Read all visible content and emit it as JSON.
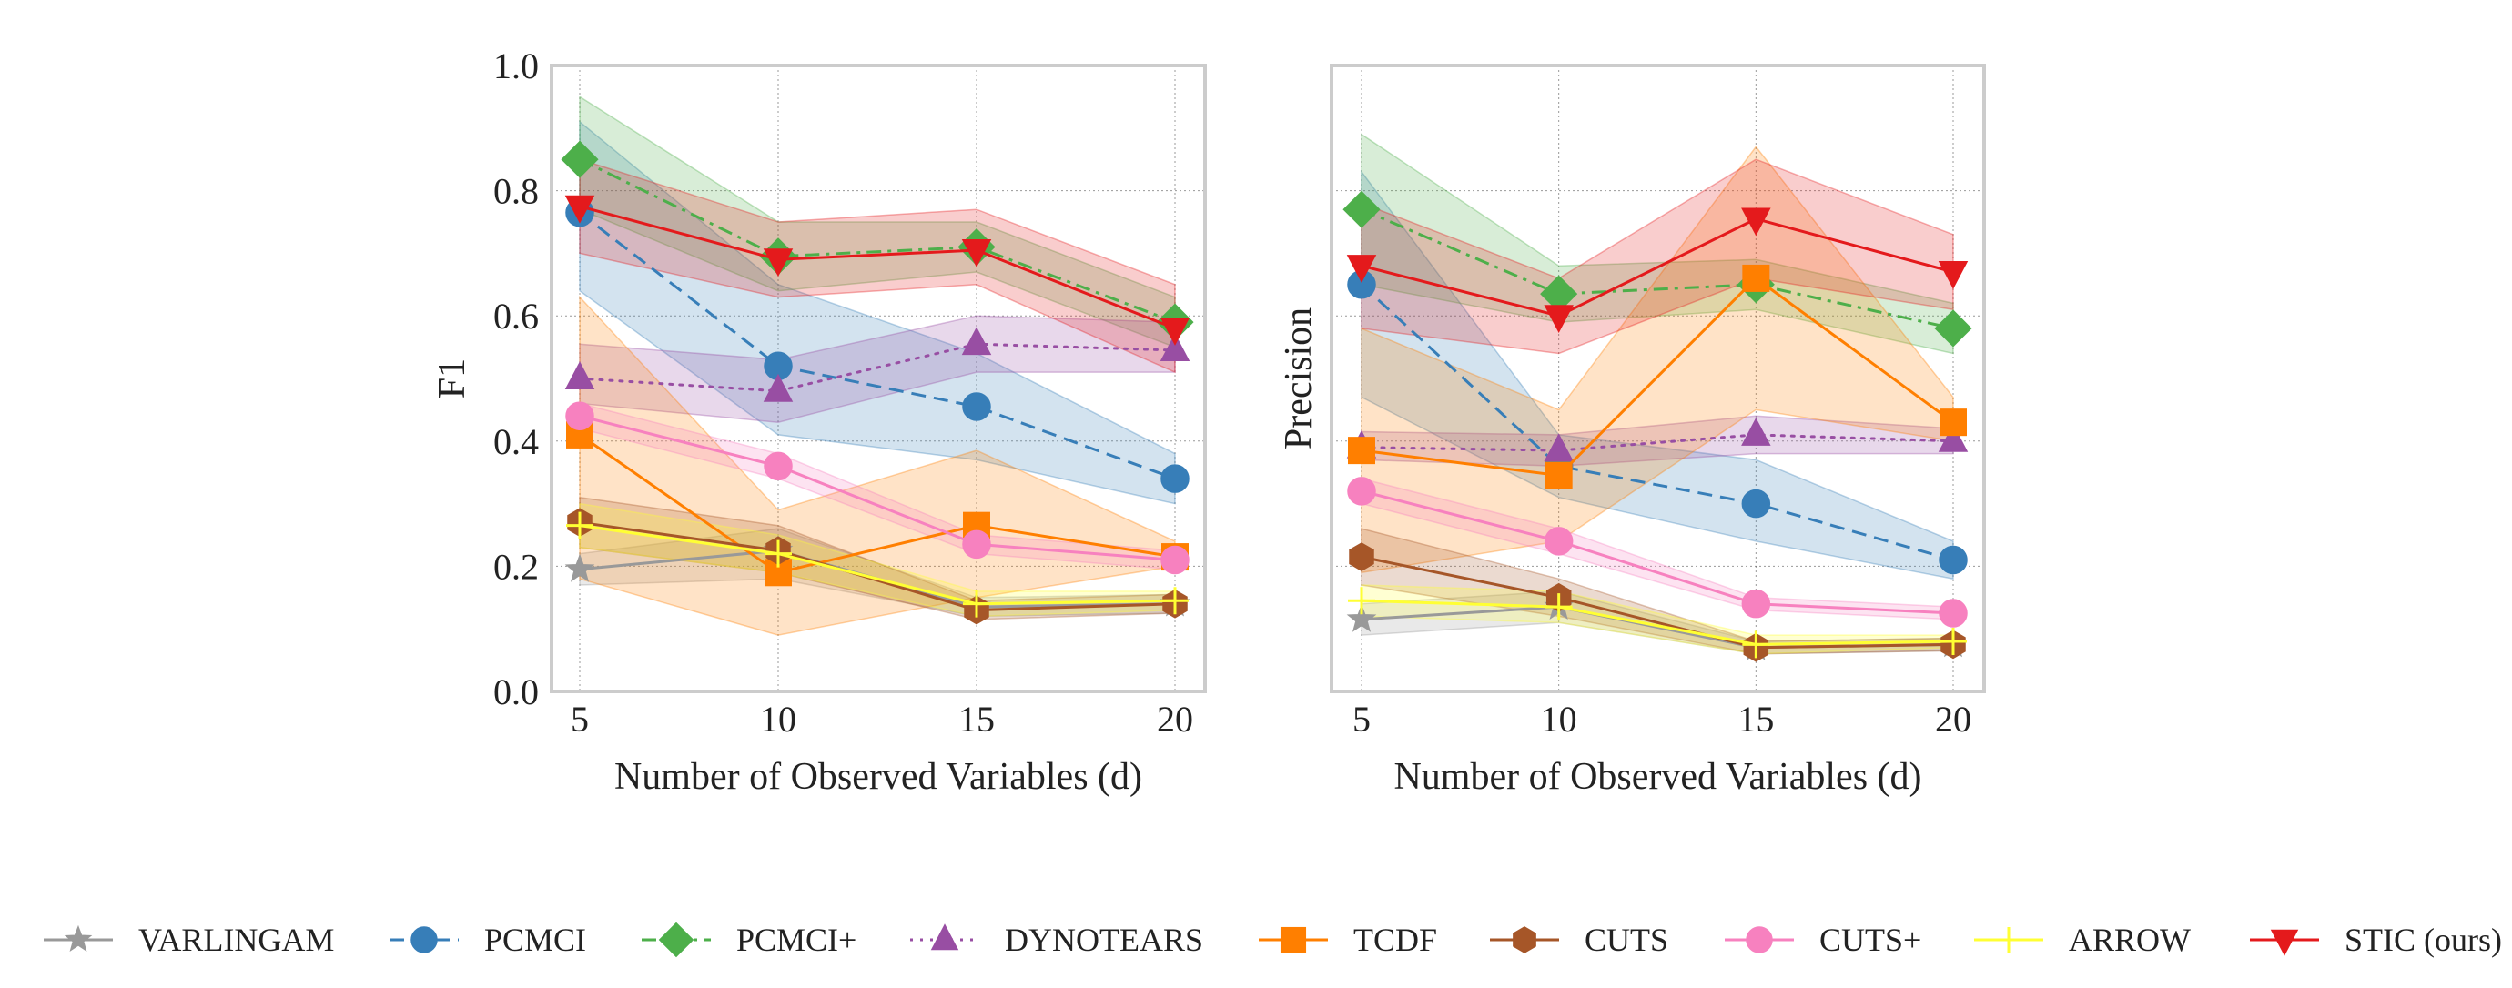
{
  "chart_data": [
    {
      "type": "line",
      "title": "",
      "xlabel": "Number of Observed Variables (d)",
      "ylabel": "F1",
      "ylim": [
        0,
        1
      ],
      "yticks": [
        "0.0",
        "0.2",
        "0.4",
        "0.6",
        "0.8",
        "1.0"
      ],
      "x": [
        5,
        10,
        15,
        20
      ],
      "xticks": [
        "5",
        "10",
        "15",
        "20"
      ],
      "grid": true,
      "series": [
        {
          "name": "VARLINGAM",
          "values": [
            0.195,
            0.225,
            0.135,
            0.14
          ],
          "lower": [
            0.17,
            0.18,
            0.12,
            0.125
          ],
          "upper": [
            0.22,
            0.26,
            0.15,
            0.155
          ]
        },
        {
          "name": "PCMCI",
          "values": [
            0.765,
            0.52,
            0.455,
            0.34
          ],
          "lower": [
            0.64,
            0.41,
            0.37,
            0.3
          ],
          "upper": [
            0.91,
            0.65,
            0.54,
            0.38
          ]
        },
        {
          "name": "PCMCI+",
          "values": [
            0.85,
            0.695,
            0.71,
            0.59
          ],
          "lower": [
            0.77,
            0.64,
            0.67,
            0.55
          ],
          "upper": [
            0.95,
            0.75,
            0.75,
            0.63
          ]
        },
        {
          "name": "DYNOTEARS",
          "values": [
            0.5,
            0.48,
            0.555,
            0.545
          ],
          "lower": [
            0.46,
            0.43,
            0.51,
            0.51
          ],
          "upper": [
            0.555,
            0.53,
            0.6,
            0.59
          ]
        },
        {
          "name": "TCDF",
          "values": [
            0.41,
            0.19,
            0.265,
            0.215
          ],
          "lower": [
            0.18,
            0.09,
            0.15,
            0.2
          ],
          "upper": [
            0.63,
            0.29,
            0.385,
            0.24
          ]
        },
        {
          "name": "CUTS",
          "values": [
            0.27,
            0.225,
            0.13,
            0.14
          ],
          "lower": [
            0.23,
            0.19,
            0.115,
            0.125
          ],
          "upper": [
            0.31,
            0.265,
            0.145,
            0.155
          ]
        },
        {
          "name": "CUTS+",
          "values": [
            0.44,
            0.36,
            0.235,
            0.21
          ],
          "lower": [
            0.42,
            0.34,
            0.22,
            0.195
          ],
          "upper": [
            0.46,
            0.38,
            0.25,
            0.225
          ]
        },
        {
          "name": "ARROW",
          "values": [
            0.265,
            0.22,
            0.14,
            0.145
          ],
          "lower": [
            0.23,
            0.19,
            0.12,
            0.13
          ],
          "upper": [
            0.3,
            0.25,
            0.16,
            0.16
          ]
        },
        {
          "name": "STIC (ours)",
          "values": [
            0.775,
            0.69,
            0.705,
            0.58
          ],
          "lower": [
            0.7,
            0.63,
            0.65,
            0.51
          ],
          "upper": [
            0.85,
            0.75,
            0.77,
            0.65
          ]
        }
      ]
    },
    {
      "type": "line",
      "title": "",
      "xlabel": "Number of Observed Variables (d)",
      "ylabel": "Precision",
      "ylim": [
        0,
        1
      ],
      "yticks": [],
      "x": [
        5,
        10,
        15,
        20
      ],
      "xticks": [
        "5",
        "10",
        "15",
        "20"
      ],
      "grid": true,
      "series": [
        {
          "name": "VARLINGAM",
          "values": [
            0.115,
            0.135,
            0.07,
            0.075
          ],
          "lower": [
            0.09,
            0.11,
            0.06,
            0.065
          ],
          "upper": [
            0.14,
            0.16,
            0.08,
            0.085
          ]
        },
        {
          "name": "PCMCI",
          "values": [
            0.65,
            0.36,
            0.3,
            0.21
          ],
          "lower": [
            0.47,
            0.31,
            0.24,
            0.18
          ],
          "upper": [
            0.83,
            0.41,
            0.37,
            0.24
          ]
        },
        {
          "name": "PCMCI+",
          "values": [
            0.77,
            0.635,
            0.65,
            0.58
          ],
          "lower": [
            0.65,
            0.59,
            0.61,
            0.54
          ],
          "upper": [
            0.89,
            0.68,
            0.69,
            0.62
          ]
        },
        {
          "name": "DYNOTEARS",
          "values": [
            0.39,
            0.385,
            0.41,
            0.4
          ],
          "lower": [
            0.37,
            0.36,
            0.38,
            0.38
          ],
          "upper": [
            0.415,
            0.41,
            0.44,
            0.42
          ]
        },
        {
          "name": "TCDF",
          "values": [
            0.385,
            0.345,
            0.66,
            0.43
          ],
          "lower": [
            0.19,
            0.24,
            0.45,
            0.4
          ],
          "upper": [
            0.58,
            0.45,
            0.87,
            0.47
          ]
        },
        {
          "name": "CUTS",
          "values": [
            0.215,
            0.15,
            0.07,
            0.075
          ],
          "lower": [
            0.17,
            0.12,
            0.06,
            0.065
          ],
          "upper": [
            0.26,
            0.18,
            0.08,
            0.085
          ]
        },
        {
          "name": "CUTS+",
          "values": [
            0.32,
            0.24,
            0.14,
            0.125
          ],
          "lower": [
            0.3,
            0.22,
            0.13,
            0.115
          ],
          "upper": [
            0.34,
            0.26,
            0.15,
            0.135
          ]
        },
        {
          "name": "ARROW",
          "values": [
            0.145,
            0.135,
            0.075,
            0.08
          ],
          "lower": [
            0.12,
            0.11,
            0.06,
            0.07
          ],
          "upper": [
            0.17,
            0.16,
            0.09,
            0.09
          ]
        },
        {
          "name": "STIC (ours)",
          "values": [
            0.68,
            0.6,
            0.755,
            0.67
          ],
          "lower": [
            0.58,
            0.54,
            0.66,
            0.61
          ],
          "upper": [
            0.78,
            0.66,
            0.85,
            0.73
          ]
        }
      ]
    }
  ],
  "legend": {
    "placement": "bottom",
    "items": [
      {
        "name": "VARLINGAM",
        "color": "#999999",
        "dash": "solid",
        "marker": "star"
      },
      {
        "name": "PCMCI",
        "color": "#377eb8",
        "dash": "dashed",
        "marker": "circle"
      },
      {
        "name": "PCMCI+",
        "color": "#4daf4a",
        "dash": "dashdot",
        "marker": "diamond"
      },
      {
        "name": "DYNOTEARS",
        "color": "#984ea3",
        "dash": "dotted",
        "marker": "triangle-up"
      },
      {
        "name": "TCDF",
        "color": "#ff7f00",
        "dash": "solid",
        "marker": "square"
      },
      {
        "name": "CUTS",
        "color": "#a65628",
        "dash": "solid",
        "marker": "hexagon"
      },
      {
        "name": "CUTS+",
        "color": "#f781bf",
        "dash": "solid",
        "marker": "circle"
      },
      {
        "name": "ARROW",
        "color": "#ffff33",
        "dash": "solid",
        "marker": "plus"
      },
      {
        "name": "STIC (ours)",
        "color": "#e41a1c",
        "dash": "solid",
        "marker": "triangle-down"
      }
    ]
  }
}
